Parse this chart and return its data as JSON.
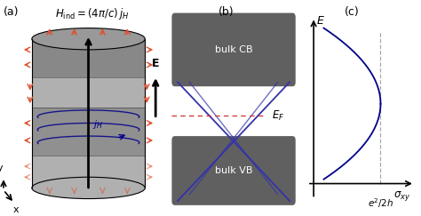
{
  "bg_color": "#ffffff",
  "panel_label_color": "#555555",
  "gray_fill": "#7f7f7f",
  "light_gray": "#b0b0b0",
  "dark_gray": "#606060",
  "blue_color": "#00008B",
  "red_arrow_color": "#e05030",
  "dashed_red": "#d04040",
  "dashed_gray": "#aaaaaa",
  "title_a": "(a)",
  "title_b": "(b)",
  "title_c": "(c)"
}
